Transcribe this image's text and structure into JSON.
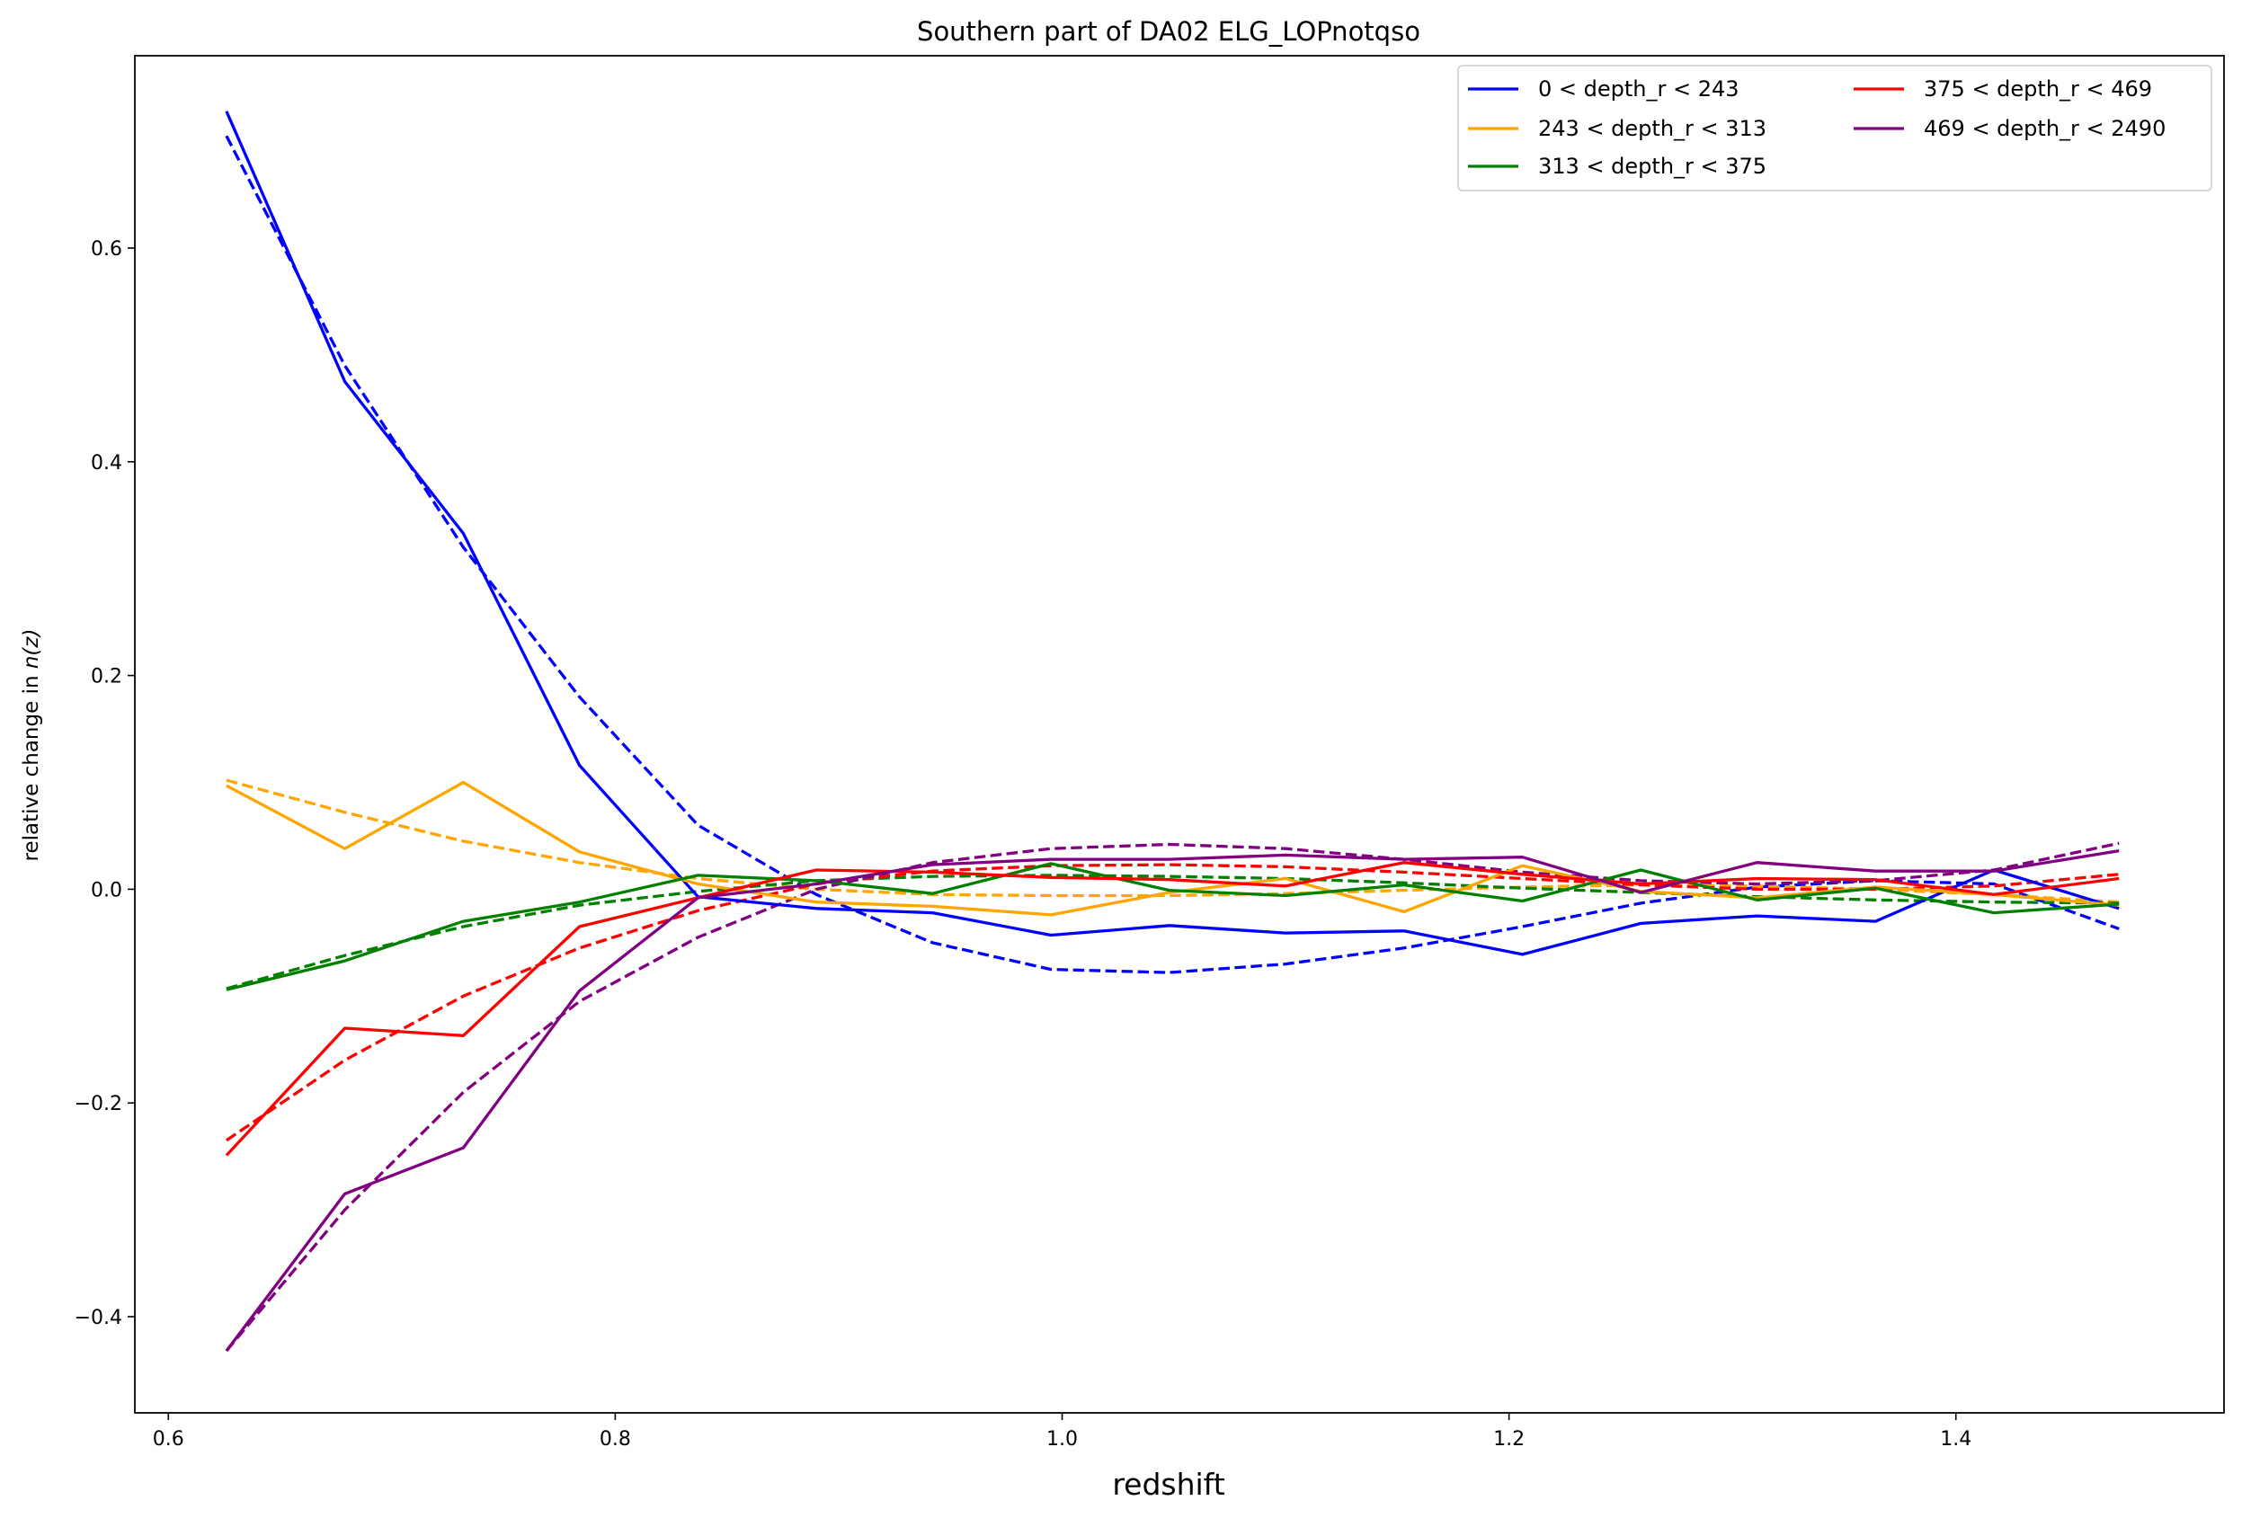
{
  "chart_data": {
    "type": "line",
    "title": "Southern part of DA02 ELG_LOPnotqso",
    "xlabel": "redshift",
    "ylabel_prefix": "relative change in ",
    "ylabel_math": "n(z)",
    "xlim": [
      0.585,
      1.52
    ],
    "ylim": [
      -0.49,
      0.78
    ],
    "xticks": [
      0.6,
      0.8,
      1.0,
      1.2,
      1.4
    ],
    "xtick_labels": [
      "0.6",
      "0.8",
      "1.0",
      "1.2",
      "1.4"
    ],
    "yticks": [
      -0.4,
      -0.2,
      0.0,
      0.2,
      0.4,
      0.6
    ],
    "ytick_labels": [
      "−0.4",
      "−0.2",
      "0.0",
      "0.2",
      "0.4",
      "0.6"
    ],
    "grid": false,
    "legend_position": "top-right",
    "x": [
      0.626,
      0.679,
      0.732,
      0.784,
      0.837,
      0.89,
      0.942,
      0.995,
      1.048,
      1.1,
      1.153,
      1.206,
      1.259,
      1.311,
      1.364,
      1.417,
      1.473
    ],
    "series": [
      {
        "name": "0 < depth_r < 243",
        "color": "#0000ff",
        "values": [
          0.728,
          0.475,
          0.333,
          0.116,
          -0.007,
          -0.018,
          -0.022,
          -0.043,
          -0.034,
          -0.041,
          -0.039,
          -0.061,
          -0.032,
          -0.025,
          -0.03,
          0.018,
          -0.018
        ],
        "fit": [
          0.705,
          0.49,
          0.32,
          0.18,
          0.06,
          -0.005,
          -0.05,
          -0.075,
          -0.078,
          -0.07,
          -0.055,
          -0.035,
          -0.013,
          0.002,
          0.008,
          0.005,
          -0.037
        ]
      },
      {
        "name": "243 < depth_r < 313",
        "color": "#ffa500",
        "values": [
          0.097,
          0.038,
          0.1,
          0.035,
          0.005,
          -0.012,
          -0.016,
          -0.024,
          -0.003,
          0.01,
          -0.021,
          0.022,
          -0.002,
          -0.008,
          0.002,
          -0.005,
          -0.015
        ],
        "fit": [
          0.102,
          0.072,
          0.045,
          0.025,
          0.01,
          0.0,
          -0.005,
          -0.006,
          -0.006,
          -0.004,
          -0.001,
          0.002,
          0.004,
          0.003,
          0.0,
          -0.005,
          -0.012
        ]
      },
      {
        "name": "313 < depth_r < 375",
        "color": "#008000",
        "values": [
          -0.094,
          -0.067,
          -0.03,
          -0.012,
          0.013,
          0.008,
          -0.004,
          0.024,
          -0.001,
          -0.006,
          0.004,
          -0.011,
          0.018,
          -0.01,
          0.001,
          -0.022,
          -0.014
        ],
        "fit": [
          -0.093,
          -0.062,
          -0.035,
          -0.015,
          -0.002,
          0.008,
          0.012,
          0.013,
          0.012,
          0.01,
          0.006,
          0.001,
          -0.003,
          -0.007,
          -0.01,
          -0.012,
          -0.013
        ]
      },
      {
        "name": "375 < depth_r < 469",
        "color": "#ff0000",
        "values": [
          -0.249,
          -0.13,
          -0.137,
          -0.035,
          -0.008,
          0.018,
          0.016,
          0.011,
          0.009,
          0.003,
          0.025,
          0.014,
          0.005,
          0.01,
          0.009,
          -0.005,
          0.01
        ],
        "fit": [
          -0.235,
          -0.16,
          -0.1,
          -0.055,
          -0.02,
          0.005,
          0.017,
          0.022,
          0.023,
          0.021,
          0.016,
          0.01,
          0.004,
          0.0,
          0.0,
          0.003,
          0.014
        ]
      },
      {
        "name": "469 < depth_r < 2490",
        "color": "#800080",
        "values": [
          -0.432,
          -0.285,
          -0.242,
          -0.095,
          -0.008,
          0.005,
          0.023,
          0.028,
          0.028,
          0.032,
          0.028,
          0.03,
          -0.003,
          0.025,
          0.017,
          0.017,
          0.036
        ],
        "fit": [
          -0.432,
          -0.3,
          -0.19,
          -0.105,
          -0.045,
          0.0,
          0.025,
          0.038,
          0.042,
          0.038,
          0.028,
          0.016,
          0.008,
          0.005,
          0.008,
          0.018,
          0.043
        ]
      }
    ]
  }
}
